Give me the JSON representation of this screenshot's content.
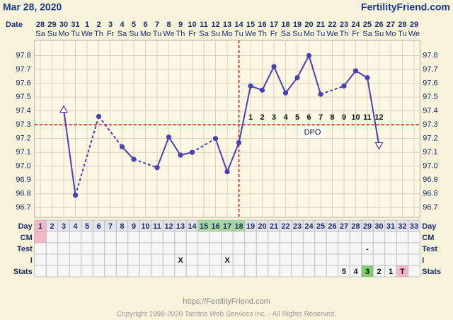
{
  "header": {
    "date": "Mar 28, 2020",
    "site": "FertilityFriend.com"
  },
  "chart_data": {
    "type": "line",
    "date_label": "Date",
    "dates": [
      28,
      29,
      30,
      31,
      1,
      2,
      3,
      4,
      5,
      6,
      7,
      8,
      9,
      10,
      11,
      12,
      13,
      14,
      15,
      16,
      17,
      18,
      19,
      20,
      21,
      22,
      23,
      24,
      25,
      26,
      27,
      28,
      29
    ],
    "weekdays": [
      "Sa",
      "Su",
      "Mo",
      "Tu",
      "We",
      "Th",
      "Fr",
      "Sa",
      "Su",
      "Mo",
      "Tu",
      "We",
      "Th",
      "Fr",
      "Sa",
      "Su",
      "Mo",
      "Tu",
      "We",
      "Th",
      "Fr",
      "Sa",
      "Su",
      "Mo",
      "Tu",
      "We",
      "Th",
      "Fr",
      "Sa",
      "Su",
      "Mo",
      "Tu",
      "We"
    ],
    "categories": [
      1,
      2,
      3,
      4,
      5,
      6,
      7,
      8,
      9,
      10,
      11,
      12,
      13,
      14,
      15,
      16,
      17,
      18,
      19,
      20,
      21,
      22,
      23,
      24,
      25,
      26,
      27,
      28,
      29,
      30,
      31,
      32,
      33
    ],
    "values": [
      null,
      null,
      97.41,
      96.79,
      null,
      97.36,
      null,
      97.14,
      97.05,
      null,
      96.99,
      97.21,
      97.08,
      97.1,
      null,
      97.2,
      96.96,
      97.17,
      97.58,
      97.55,
      97.72,
      97.53,
      97.64,
      97.8,
      97.52,
      null,
      97.58,
      97.69,
      97.64,
      97.15,
      null,
      null,
      null
    ],
    "markers": [
      null,
      null,
      "triangle-up",
      "circle",
      null,
      "circle",
      null,
      "circle",
      "circle",
      null,
      "circle",
      "circle",
      "circle",
      "circle",
      null,
      "circle",
      "circle",
      "circle",
      "circle",
      "circle",
      "circle",
      "circle",
      "circle",
      "circle",
      "circle",
      null,
      "circle",
      "circle",
      "circle",
      "triangle-down",
      null,
      null,
      null
    ],
    "color": "#4a3fb8",
    "ylim": [
      96.63,
      97.91
    ],
    "yticks": [
      96.7,
      96.8,
      96.9,
      {
        "value": 97.0,
        "label": "97.0"
      },
      97.1,
      97.2,
      97.3,
      97.4,
      97.5,
      97.6,
      97.7,
      97.8
    ],
    "grid": true,
    "coverline": 97.3,
    "ovulation_day": 18,
    "reference_color": "#d2473a",
    "dpo_labels": [
      null,
      null,
      null,
      null,
      null,
      null,
      null,
      null,
      null,
      null,
      null,
      null,
      null,
      null,
      null,
      null,
      null,
      null,
      1,
      2,
      3,
      4,
      5,
      6,
      7,
      8,
      9,
      10,
      11,
      12,
      null,
      null,
      null
    ],
    "dpo_label": "DPO"
  },
  "table": {
    "rows": [
      {
        "label": "Day",
        "cells": [
          {
            "day": 1,
            "fill": "#f4b8c4"
          },
          {
            "day": 15,
            "fill": "#a9d99a"
          },
          {
            "day": 16,
            "fill": "#a9d99a"
          },
          {
            "day": 17,
            "fill": "#a9d99a"
          },
          {
            "day": 18,
            "fill": "#a9d99a"
          }
        ]
      },
      {
        "label": "CM",
        "cells": [
          {
            "day": 1,
            "fill": "#f4b8c4"
          }
        ]
      },
      {
        "label": "Test",
        "cells": [
          {
            "day": 29,
            "text": "-"
          }
        ]
      },
      {
        "label": "I",
        "cells": [
          {
            "day": 13,
            "text": "X"
          },
          {
            "day": 17,
            "text": "X"
          }
        ]
      },
      {
        "label": "Stats",
        "cells": [
          {
            "day": 27,
            "text": "5"
          },
          {
            "day": 28,
            "text": "4"
          },
          {
            "day": 29,
            "text": "3",
            "fill": "#7ccf6a"
          },
          {
            "day": 30,
            "text": "2"
          },
          {
            "day": 31,
            "text": "1"
          },
          {
            "day": 32,
            "text": "T",
            "fill": "#f4b8c4"
          }
        ]
      }
    ]
  },
  "footer": {
    "url": "https://FertilityFriend.com",
    "copyright": "Copyright 1998-2020 Tamtris Web Services Inc. - All Rights Reserved."
  }
}
